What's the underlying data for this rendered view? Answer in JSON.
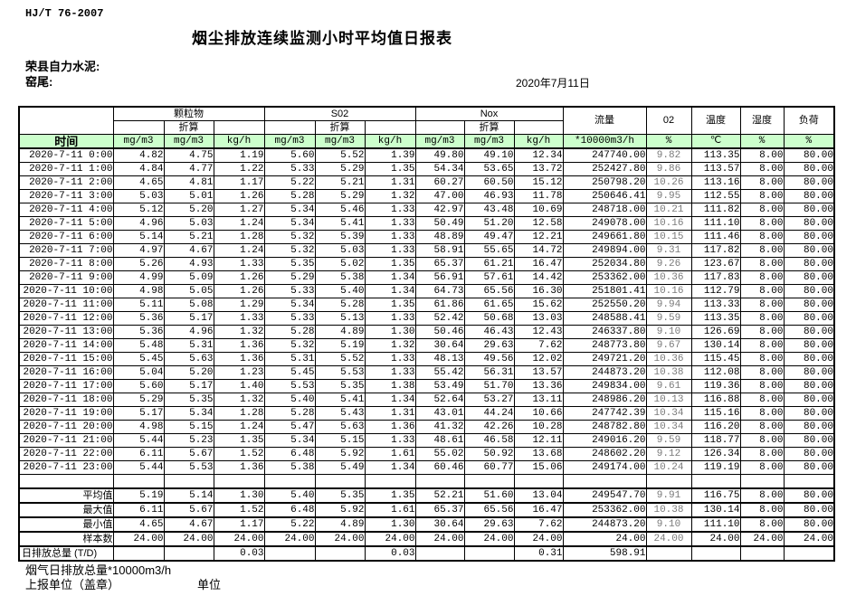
{
  "header": {
    "standard": "HJ/T  76-2007",
    "title": "烟尘排放连续监测小时平均值日报表",
    "company": "荣县自力水泥:",
    "location": "窑尾:",
    "date": "2020年7月11日"
  },
  "table": {
    "time_label": "时间",
    "converted_label": "折算",
    "groups": {
      "pm": "颗粒物",
      "so2": "S02",
      "nox": "Nox",
      "flow": "流量",
      "o2": "02",
      "temp": "温度",
      "humidity": "湿度",
      "load": "负荷"
    },
    "units": [
      "mg/m3",
      "mg/m3",
      "kg/h",
      "mg/m3",
      "mg/m3",
      "kg/h",
      "mg/m3",
      "mg/m3",
      "kg/h",
      "*10000m3/h",
      "%",
      "℃",
      "%",
      "%"
    ],
    "rows": [
      {
        "time": "2020-7-11 0:00",
        "values": [
          "4.82",
          "4.75",
          "1.19",
          "5.60",
          "5.52",
          "1.39",
          "49.80",
          "49.10",
          "12.34",
          "247740.00",
          "9.82",
          "113.35",
          "8.00",
          "80.00"
        ]
      },
      {
        "time": "2020-7-11 1:00",
        "values": [
          "4.84",
          "4.77",
          "1.22",
          "5.33",
          "5.29",
          "1.35",
          "54.34",
          "53.65",
          "13.72",
          "252427.80",
          "9.86",
          "113.57",
          "8.00",
          "80.00"
        ]
      },
      {
        "time": "2020-7-11 2:00",
        "values": [
          "4.65",
          "4.81",
          "1.17",
          "5.22",
          "5.21",
          "1.31",
          "60.27",
          "60.50",
          "15.12",
          "250798.20",
          "10.26",
          "113.16",
          "8.00",
          "80.00"
        ]
      },
      {
        "time": "2020-7-11 3:00",
        "values": [
          "5.03",
          "5.01",
          "1.26",
          "5.28",
          "5.29",
          "1.32",
          "47.00",
          "46.93",
          "11.78",
          "250646.41",
          "9.95",
          "112.55",
          "8.00",
          "80.00"
        ]
      },
      {
        "time": "2020-7-11 4:00",
        "values": [
          "5.12",
          "5.20",
          "1.27",
          "5.34",
          "5.46",
          "1.33",
          "42.97",
          "43.48",
          "10.69",
          "248718.00",
          "10.21",
          "111.82",
          "8.00",
          "80.00"
        ]
      },
      {
        "time": "2020-7-11 5:00",
        "values": [
          "4.96",
          "5.03",
          "1.24",
          "5.34",
          "5.41",
          "1.33",
          "50.49",
          "51.20",
          "12.58",
          "249078.00",
          "10.16",
          "111.10",
          "8.00",
          "80.00"
        ]
      },
      {
        "time": "2020-7-11 6:00",
        "values": [
          "5.14",
          "5.21",
          "1.28",
          "5.32",
          "5.39",
          "1.33",
          "48.89",
          "49.47",
          "12.21",
          "249661.80",
          "10.15",
          "111.46",
          "8.00",
          "80.00"
        ]
      },
      {
        "time": "2020-7-11 7:00",
        "values": [
          "4.97",
          "4.67",
          "1.24",
          "5.32",
          "5.03",
          "1.33",
          "58.91",
          "55.65",
          "14.72",
          "249894.00",
          "9.31",
          "117.82",
          "8.00",
          "80.00"
        ]
      },
      {
        "time": "2020-7-11 8:00",
        "values": [
          "5.26",
          "4.93",
          "1.33",
          "5.35",
          "5.02",
          "1.35",
          "65.37",
          "61.21",
          "16.47",
          "252034.80",
          "9.26",
          "123.67",
          "8.00",
          "80.00"
        ]
      },
      {
        "time": "2020-7-11 9:00",
        "values": [
          "4.99",
          "5.09",
          "1.26",
          "5.29",
          "5.38",
          "1.34",
          "56.91",
          "57.61",
          "14.42",
          "253362.00",
          "10.36",
          "117.83",
          "8.00",
          "80.00"
        ]
      },
      {
        "time": "2020-7-11 10:00",
        "values": [
          "4.98",
          "5.05",
          "1.26",
          "5.33",
          "5.40",
          "1.34",
          "64.73",
          "65.56",
          "16.30",
          "251801.41",
          "10.16",
          "112.79",
          "8.00",
          "80.00"
        ]
      },
      {
        "time": "2020-7-11 11:00",
        "values": [
          "5.11",
          "5.08",
          "1.29",
          "5.34",
          "5.28",
          "1.35",
          "61.86",
          "61.65",
          "15.62",
          "252550.20",
          "9.94",
          "113.33",
          "8.00",
          "80.00"
        ]
      },
      {
        "time": "2020-7-11 12:00",
        "values": [
          "5.36",
          "5.17",
          "1.33",
          "5.33",
          "5.13",
          "1.33",
          "52.42",
          "50.68",
          "13.03",
          "248588.41",
          "9.59",
          "113.35",
          "8.00",
          "80.00"
        ]
      },
      {
        "time": "2020-7-11 13:00",
        "values": [
          "5.36",
          "4.96",
          "1.32",
          "5.28",
          "4.89",
          "1.30",
          "50.46",
          "46.43",
          "12.43",
          "246337.80",
          "9.10",
          "126.69",
          "8.00",
          "80.00"
        ]
      },
      {
        "time": "2020-7-11 14:00",
        "values": [
          "5.48",
          "5.31",
          "1.36",
          "5.32",
          "5.19",
          "1.32",
          "30.64",
          "29.63",
          "7.62",
          "248773.80",
          "9.67",
          "130.14",
          "8.00",
          "80.00"
        ]
      },
      {
        "time": "2020-7-11 15:00",
        "values": [
          "5.45",
          "5.63",
          "1.36",
          "5.31",
          "5.52",
          "1.33",
          "48.13",
          "49.56",
          "12.02",
          "249721.20",
          "10.36",
          "115.45",
          "8.00",
          "80.00"
        ]
      },
      {
        "time": "2020-7-11 16:00",
        "values": [
          "5.04",
          "5.20",
          "1.23",
          "5.45",
          "5.53",
          "1.33",
          "55.42",
          "56.31",
          "13.57",
          "244873.20",
          "10.38",
          "112.08",
          "8.00",
          "80.00"
        ]
      },
      {
        "time": "2020-7-11 17:00",
        "values": [
          "5.60",
          "5.17",
          "1.40",
          "5.53",
          "5.35",
          "1.38",
          "53.49",
          "51.70",
          "13.36",
          "249834.00",
          "9.61",
          "119.36",
          "8.00",
          "80.00"
        ]
      },
      {
        "time": "2020-7-11 18:00",
        "values": [
          "5.29",
          "5.35",
          "1.32",
          "5.40",
          "5.41",
          "1.34",
          "52.64",
          "53.27",
          "13.11",
          "248986.20",
          "10.13",
          "116.88",
          "8.00",
          "80.00"
        ]
      },
      {
        "time": "2020-7-11 19:00",
        "values": [
          "5.17",
          "5.34",
          "1.28",
          "5.28",
          "5.43",
          "1.31",
          "43.01",
          "44.24",
          "10.66",
          "247742.39",
          "10.34",
          "115.16",
          "8.00",
          "80.00"
        ]
      },
      {
        "time": "2020-7-11 20:00",
        "values": [
          "4.98",
          "5.15",
          "1.24",
          "5.47",
          "5.63",
          "1.36",
          "41.32",
          "42.26",
          "10.28",
          "248782.80",
          "10.34",
          "116.20",
          "8.00",
          "80.00"
        ]
      },
      {
        "time": "2020-7-11 21:00",
        "values": [
          "5.44",
          "5.23",
          "1.35",
          "5.34",
          "5.15",
          "1.33",
          "48.61",
          "46.58",
          "12.11",
          "249016.20",
          "9.59",
          "118.77",
          "8.00",
          "80.00"
        ]
      },
      {
        "time": "2020-7-11 22:00",
        "values": [
          "6.11",
          "5.67",
          "1.52",
          "6.48",
          "5.92",
          "1.61",
          "55.02",
          "50.92",
          "13.68",
          "248602.20",
          "9.12",
          "126.34",
          "8.00",
          "80.00"
        ]
      },
      {
        "time": "2020-7-11 23:00",
        "values": [
          "5.44",
          "5.53",
          "1.36",
          "5.38",
          "5.49",
          "1.34",
          "60.46",
          "60.77",
          "15.06",
          "249174.00",
          "10.24",
          "119.19",
          "8.00",
          "80.00"
        ]
      },
      {
        "time": "",
        "values": [
          "",
          "",
          "",
          "",
          "",
          "",
          "",
          "",
          "",
          "",
          "",
          "",
          "",
          ""
        ]
      }
    ],
    "summary": [
      {
        "label": "平均值",
        "align": "right",
        "values": [
          "5.19",
          "5.14",
          "1.30",
          "5.40",
          "5.35",
          "1.35",
          "52.21",
          "51.60",
          "13.04",
          "249547.70",
          "9.91",
          "116.75",
          "8.00",
          "80.00"
        ]
      },
      {
        "label": "最大值",
        "align": "right",
        "values": [
          "6.11",
          "5.67",
          "1.52",
          "6.48",
          "5.92",
          "1.61",
          "65.37",
          "65.56",
          "16.47",
          "253362.00",
          "10.38",
          "130.14",
          "8.00",
          "80.00"
        ]
      },
      {
        "label": "最小值",
        "align": "right",
        "values": [
          "4.65",
          "4.67",
          "1.17",
          "5.22",
          "4.89",
          "1.30",
          "30.64",
          "29.63",
          "7.62",
          "244873.20",
          "9.10",
          "111.10",
          "8.00",
          "80.00"
        ]
      },
      {
        "label": "样本数",
        "align": "right",
        "values": [
          "24.00",
          "24.00",
          "24.00",
          "24.00",
          "24.00",
          "24.00",
          "24.00",
          "24.00",
          "24.00",
          "24.00",
          "24.00",
          "24.00",
          "24.00",
          "24.00"
        ]
      },
      {
        "label": "日排放总量 (T/D)",
        "align": "left",
        "values": [
          "",
          "",
          "0.03",
          "",
          "",
          "0.03",
          "",
          "",
          "0.31",
          "598.91",
          "",
          "",
          "",
          ""
        ]
      }
    ]
  },
  "footer": {
    "flue_gas_total": "烟气日排放总量*10000m3/h",
    "report_unit": "上报单位（盖章）",
    "unit": "单位"
  },
  "colors": {
    "header_green": "#ccffcc",
    "border": "#000000",
    "o2_text": "#7a7a7a"
  }
}
